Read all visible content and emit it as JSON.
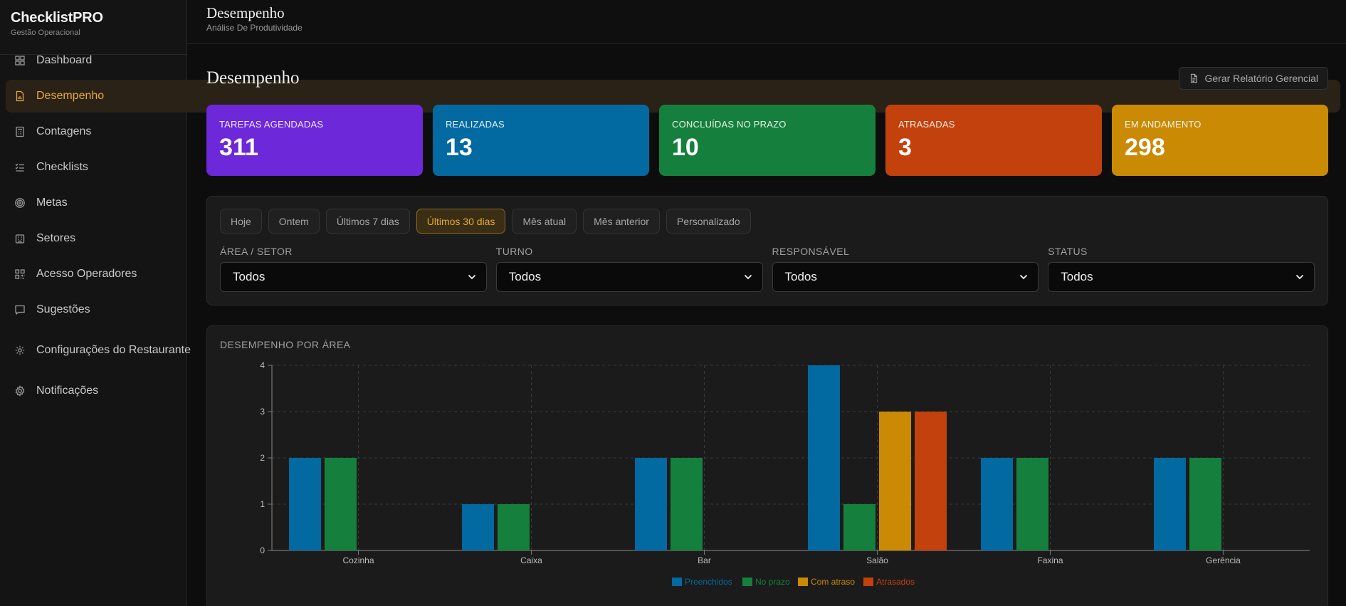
{
  "brand": {
    "name": "ChecklistPRO",
    "subtitle": "Gestão Operacional"
  },
  "sidebar": {
    "items": [
      {
        "label": "Dashboard",
        "icon": "grid-icon",
        "active": false
      },
      {
        "label": "Desempenho",
        "icon": "file-chart-icon",
        "active": true
      },
      {
        "label": "Contagens",
        "icon": "calculator-icon",
        "active": false
      },
      {
        "label": "Checklists",
        "icon": "list-check-icon",
        "active": false
      },
      {
        "label": "Metas",
        "icon": "target-icon",
        "active": false
      },
      {
        "label": "Setores",
        "icon": "building-icon",
        "active": false
      },
      {
        "label": "Acesso Operadores",
        "icon": "qr-code-icon",
        "active": false
      },
      {
        "label": "Sugestões",
        "icon": "message-icon",
        "active": false
      },
      {
        "label": "Configurações do Restaurante",
        "icon": "settings-icon",
        "active": false
      },
      {
        "label": "Notificações",
        "icon": "gear-icon",
        "active": false
      }
    ]
  },
  "topbar": {
    "title": "Desempenho",
    "subtitle": "Análise De Produtividade"
  },
  "page": {
    "title": "Desempenho",
    "report_button": "Gerar Relatório Gerencial"
  },
  "kpis": [
    {
      "label": "TAREFAS AGENDADAS",
      "value": "311",
      "color": "#6d28d9"
    },
    {
      "label": "REALIZADAS",
      "value": "13",
      "color": "#0369a1"
    },
    {
      "label": "CONCLUÍDAS NO PRAZO",
      "value": "10",
      "color": "#15803d"
    },
    {
      "label": "ATRASADAS",
      "value": "3",
      "color": "#c2410c"
    },
    {
      "label": "EM ANDAMENTO",
      "value": "298",
      "color": "#ca8a04"
    }
  ],
  "filters": {
    "periods": [
      "Hoje",
      "Ontem",
      "Últimos 7 dias",
      "Últimos 30 dias",
      "Mês atual",
      "Mês anterior",
      "Personalizado"
    ],
    "active_period": "Últimos 30 dias",
    "selects": [
      {
        "label": "ÁREA / SETOR",
        "value": "Todos"
      },
      {
        "label": "TURNO",
        "value": "Todos"
      },
      {
        "label": "RESPONSÁVEL",
        "value": "Todos"
      },
      {
        "label": "STATUS",
        "value": "Todos"
      }
    ]
  },
  "chart_title": "DESEMPENHO POR ÁREA",
  "chart_data": {
    "type": "bar",
    "title": "DESEMPENHO POR ÁREA",
    "categories": [
      "Cozinha",
      "Caixa",
      "Bar",
      "Salão",
      "Faxina",
      "Gerência"
    ],
    "series": [
      {
        "name": "Preenchidos",
        "color": "#0369a1",
        "values": [
          2,
          1,
          2,
          4,
          2,
          2
        ]
      },
      {
        "name": "No prazo",
        "color": "#15803d",
        "values": [
          2,
          1,
          2,
          1,
          2,
          2
        ]
      },
      {
        "name": "Com atraso",
        "color": "#ca8a04",
        "values": [
          0,
          0,
          0,
          3,
          0,
          0
        ]
      },
      {
        "name": "Atrasados",
        "color": "#c2410c",
        "values": [
          0,
          0,
          0,
          3,
          0,
          0
        ]
      }
    ],
    "yticks": [
      0,
      1,
      2,
      3,
      4
    ],
    "ylim": [
      0,
      4
    ],
    "grid": true,
    "legend": "bottom"
  }
}
